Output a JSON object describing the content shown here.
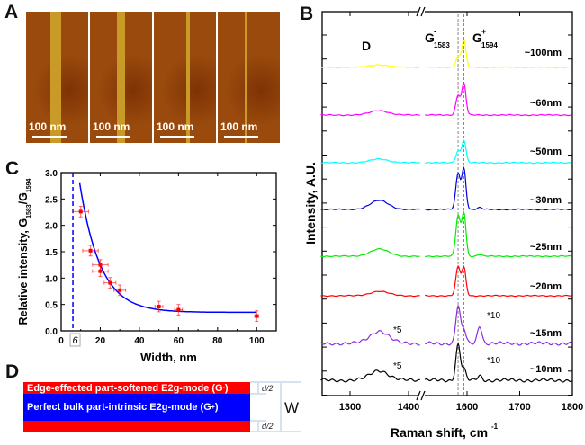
{
  "panels": {
    "A": {
      "label": "A",
      "images": [
        {
          "scale_bar": "100 nm",
          "stripe_width_nm": 100
        },
        {
          "scale_bar": "100 nm",
          "stripe_width_nm": 60
        },
        {
          "scale_bar": "100 nm",
          "stripe_width_nm": 25
        },
        {
          "scale_bar": "100 nm",
          "stripe_width_nm": 20
        }
      ],
      "colors": {
        "background": "#9a4a0c",
        "stripe": "#c99a28"
      }
    },
    "B": {
      "label": "B"
    },
    "C": {
      "label": "C"
    },
    "D": {
      "label": "D",
      "edge_text": "Edge-effected part-softened E2g-mode (G",
      "edge_sup": "-",
      "bulk_text": "Perfect bulk part-intrinsic E2g-mode (G",
      "bulk_sup": "+",
      "close_paren": ")",
      "half_label": "d/2",
      "width_label": "W",
      "colors": {
        "edge": "#ff0000",
        "bulk": "#0000ff"
      }
    }
  },
  "chart_data": [
    {
      "type": "line",
      "panel": "B",
      "xlabel": "Raman shift, cm",
      "xlabel_sup": "-1",
      "ylabel": "Intensity, A.U.",
      "x_ticks": [
        1300,
        1400,
        1600,
        1700,
        1800
      ],
      "x_segments": [
        [
          1250,
          1420
        ],
        [
          1520,
          1800
        ]
      ],
      "axis_break": "//",
      "peak_labels": {
        "D": "D",
        "G_minus": "G",
        "G_minus_sup": "-",
        "G_minus_sub": "1583",
        "G_plus": "G",
        "G_plus_sup": "+",
        "G_plus_sub": "1594"
      },
      "reference_lines": [
        1583,
        1594
      ],
      "series": [
        {
          "name": "~100nm",
          "color": "#ffff00",
          "D": 3,
          "G_minus": 12,
          "G_plus": 30,
          "D_prime": 0,
          "noise": 0.6
        },
        {
          "name": "~60nm",
          "color": "#ff00ff",
          "D": 5,
          "G_minus": 22,
          "G_plus": 35,
          "D_prime": 0,
          "noise": 0.6
        },
        {
          "name": "~50nm",
          "color": "#00ffff",
          "D": 4,
          "G_minus": 13,
          "G_plus": 25,
          "D_prime": 0,
          "noise": 0.6
        },
        {
          "name": "~30nm",
          "color": "#0000dd",
          "D": 10,
          "G_minus": 40,
          "G_plus": 45,
          "D_prime": 2,
          "noise": 0.6
        },
        {
          "name": "~25nm",
          "color": "#00ee00",
          "D": 8,
          "G_minus": 45,
          "G_plus": 48,
          "D_prime": 2,
          "noise": 0.6
        },
        {
          "name": "~20nm",
          "color": "#ff0000",
          "D": 5,
          "G_minus": 32,
          "G_plus": 31,
          "D_prime": 0,
          "noise": 0.6
        },
        {
          "name": "~15nm",
          "color": "#8a2be2",
          "D": 14,
          "G_minus": 42,
          "G_plus": 15,
          "D_prime": 20,
          "noise": 2,
          "left_multiplier": "*5",
          "right_multiplier": "*10"
        },
        {
          "name": "~10nm",
          "color": "#000000",
          "D": 11,
          "G_minus": 40,
          "G_plus": 12,
          "D_prime": 5,
          "noise": 2,
          "left_multiplier": "*5",
          "right_multiplier": "*10"
        }
      ]
    },
    {
      "type": "scatter",
      "panel": "C",
      "xlabel": "Width, nm",
      "ylabel": "Relative intensity, G",
      "ylabel_sub1": "1583",
      "ylabel_mid": "/G",
      "ylabel_sub2": "1594",
      "xlim": [
        0,
        110
      ],
      "ylim": [
        0,
        3
      ],
      "x_ticks": [
        0,
        20,
        40,
        60,
        80,
        100
      ],
      "y_ticks": [
        "0.0",
        "0.5",
        "1.0",
        "1.5",
        "2.0",
        "2.5",
        "3.0"
      ],
      "threshold_line": 6,
      "threshold_label": "6",
      "points": [
        {
          "x": 10,
          "y": 2.26,
          "xerr": 4,
          "yerr": 0.1
        },
        {
          "x": 15,
          "y": 1.52,
          "xerr": 4,
          "yerr": 0.1
        },
        {
          "x": 20,
          "y": 1.25,
          "xerr": 4,
          "yerr": 0.1
        },
        {
          "x": 20,
          "y": 1.13,
          "xerr": 4,
          "yerr": 0.1
        },
        {
          "x": 25,
          "y": 0.91,
          "xerr": 3,
          "yerr": 0.1
        },
        {
          "x": 30,
          "y": 0.77,
          "xerr": 3,
          "yerr": 0.1
        },
        {
          "x": 50,
          "y": 0.46,
          "xerr": 2,
          "yerr": 0.1
        },
        {
          "x": 60,
          "y": 0.4,
          "xerr": 2,
          "yerr": 0.1
        },
        {
          "x": 100,
          "y": 0.28,
          "xerr": 1,
          "yerr": 0.1
        }
      ],
      "fit": {
        "type": "exponential decay",
        "offset": 0.35,
        "amplitude": 6.05,
        "decay": 10.5,
        "x_range": [
          9.5,
          100
        ]
      },
      "colors": {
        "points": "#ff0000",
        "fit": "#0000ff"
      }
    }
  ]
}
